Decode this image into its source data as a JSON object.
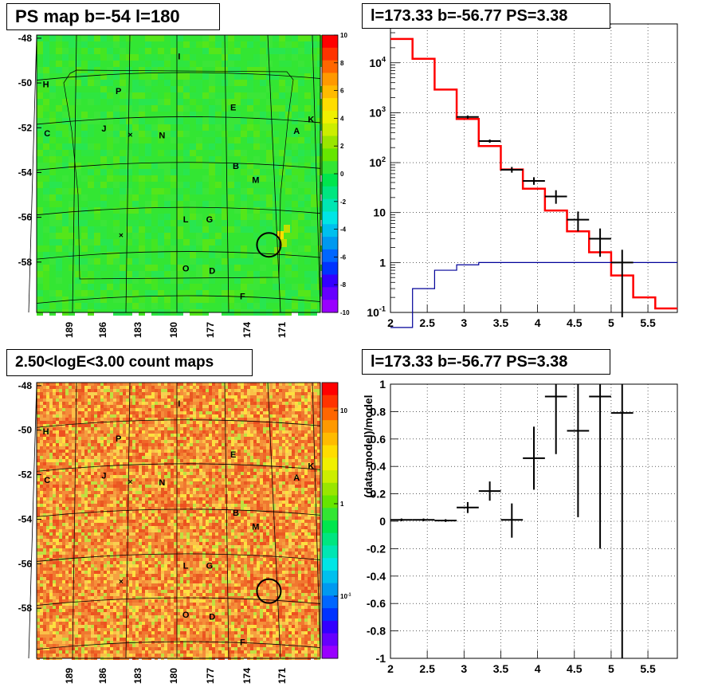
{
  "panels": {
    "map_top_title": "PS map b=-54 l=180",
    "map_bottom_title": "2.50<logE<3.00 count maps",
    "spec_title": "l=173.33 b=-56.77 PS=3.38",
    "resid_title": "l=173.33 b=-56.77 PS=3.38"
  },
  "colors": {
    "data": "#000000",
    "model": "#ff0000",
    "background": "#000099",
    "map_top_base": "#33e633",
    "map_bottom_base": "#f07830"
  },
  "chart_data": [
    {
      "type": "heatmap",
      "title": "PS map b=-54 l=180",
      "x_ticks": [
        "189",
        "186",
        "183",
        "180",
        "177",
        "174",
        "171"
      ],
      "y_ticks": [
        "-48",
        "-50",
        "-52",
        "-54",
        "-56",
        "-58"
      ],
      "colorbar_ticks": [
        "10",
        "8",
        "6",
        "4",
        "2",
        "0",
        "-2",
        "-4",
        "-6",
        "-8",
        "-10"
      ],
      "colorbar_range": [
        -10,
        10
      ],
      "sources": [
        {
          "label": "I",
          "l": 180.2,
          "b": -48.5
        },
        {
          "label": "H",
          "l": 190.3,
          "b": -49.7
        },
        {
          "label": "P",
          "l": 184.8,
          "b": -50.0
        },
        {
          "label": "E",
          "l": 176.1,
          "b": -50.7
        },
        {
          "label": "K",
          "l": 170.2,
          "b": -51.2
        },
        {
          "label": "C",
          "l": 190.2,
          "b": -51.8
        },
        {
          "label": "J",
          "l": 185.9,
          "b": -51.6
        },
        {
          "label": "N",
          "l": 181.5,
          "b": -51.9
        },
        {
          "label": "A",
          "l": 171.3,
          "b": -51.7
        },
        {
          "label": "B",
          "l": 175.9,
          "b": -53.2
        },
        {
          "label": "M",
          "l": 174.4,
          "b": -53.8
        },
        {
          "label": "L",
          "l": 179.7,
          "b": -55.5
        },
        {
          "label": "G",
          "l": 177.9,
          "b": -55.5
        },
        {
          "label": "O",
          "l": 179.7,
          "b": -57.6
        },
        {
          "label": "D",
          "l": 177.7,
          "b": -57.7
        },
        {
          "label": "F",
          "l": 175.4,
          "b": -58.8
        }
      ]
    },
    {
      "type": "line",
      "title": "l=173.33 b=-56.77 PS=3.38",
      "x_scale": "linear",
      "y_scale": "log",
      "xlim": [
        2,
        5.9
      ],
      "ylim": [
        0.1,
        60000
      ],
      "x_ticks": [
        "2",
        "2.5",
        "3",
        "3.5",
        "4",
        "4.5",
        "5",
        "5.5"
      ],
      "y_ticks": [
        "10^-1",
        "1",
        "10",
        "10^2",
        "10^3",
        "10^4"
      ],
      "grid": true,
      "bin_edges": [
        2.0,
        2.3,
        2.6,
        2.9,
        3.2,
        3.5,
        3.8,
        4.1,
        4.4,
        4.7,
        5.0,
        5.3,
        5.6,
        5.9
      ],
      "series": [
        {
          "style": "step",
          "color": "#ff0000",
          "values": [
            30000,
            12000,
            2900,
            750,
            215,
            73,
            30,
            11,
            4.2,
            1.6,
            0.55,
            0.2,
            0.12
          ]
        },
        {
          "style": "step",
          "color": "#000099",
          "values": [
            0.05,
            0.3,
            0.7,
            0.9,
            1.0,
            1.0,
            1.0,
            1.0,
            1.0,
            1.0,
            1.0,
            1.0,
            1.0
          ]
        },
        {
          "style": "points",
          "color": "#000000",
          "x": [
            3.05,
            3.35,
            3.65,
            3.95,
            4.25,
            4.55,
            4.85,
            5.15
          ],
          "y": [
            820,
            270,
            72,
            43,
            21,
            7.2,
            3.0,
            1.0
          ],
          "xerr": [
            0.15,
            0.15,
            0.15,
            0.15,
            0.15,
            0.15,
            0.15,
            0.15
          ],
          "ylow": [
            760,
            250,
            63,
            36,
            15,
            4.2,
            1.3,
            0.08
          ],
          "yhigh": [
            880,
            290,
            82,
            51,
            28,
            10.5,
            4.8,
            1.8
          ]
        }
      ]
    },
    {
      "type": "heatmap",
      "title": "2.50<logE<3.00 count maps",
      "x_ticks": [
        "189",
        "186",
        "183",
        "180",
        "177",
        "174",
        "171"
      ],
      "y_ticks": [
        "-48",
        "-50",
        "-52",
        "-54",
        "-56",
        "-58"
      ],
      "colorbar_ticks": [
        "10",
        "1",
        "10^-1"
      ],
      "colorbar_scale": "log"
    },
    {
      "type": "scatter",
      "title": "l=173.33 b=-56.77 PS=3.38",
      "xlim": [
        2,
        5.9
      ],
      "ylim": [
        -1,
        1
      ],
      "ylabel": "(data-model)/model",
      "x_ticks": [
        "2",
        "2.5",
        "3",
        "3.5",
        "4",
        "4.5",
        "5",
        "5.5"
      ],
      "y_ticks": [
        "-1",
        "-0.8",
        "-0.6",
        "-0.4",
        "-0.2",
        "0",
        "0.2",
        "0.4",
        "0.6",
        "0.8",
        "1"
      ],
      "grid": true,
      "x": [
        2.15,
        2.45,
        2.75,
        3.05,
        3.35,
        3.65,
        3.95,
        4.25,
        4.55,
        4.85,
        5.15
      ],
      "y": [
        0.01,
        0.01,
        0.005,
        0.1,
        0.22,
        0.01,
        0.46,
        0.91,
        0.66,
        0.91,
        0.79
      ],
      "xerr": [
        0.15,
        0.15,
        0.15,
        0.15,
        0.15,
        0.15,
        0.15,
        0.15,
        0.15,
        0.15,
        0.15
      ],
      "ylow": [
        0.0,
        0.0,
        -0.005,
        0.06,
        0.15,
        -0.12,
        0.23,
        0.49,
        0.03,
        -0.2,
        -1.0
      ],
      "yhigh": [
        0.02,
        0.02,
        0.015,
        0.14,
        0.29,
        0.13,
        0.69,
        1.0,
        1.0,
        1.0,
        1.0
      ]
    }
  ]
}
